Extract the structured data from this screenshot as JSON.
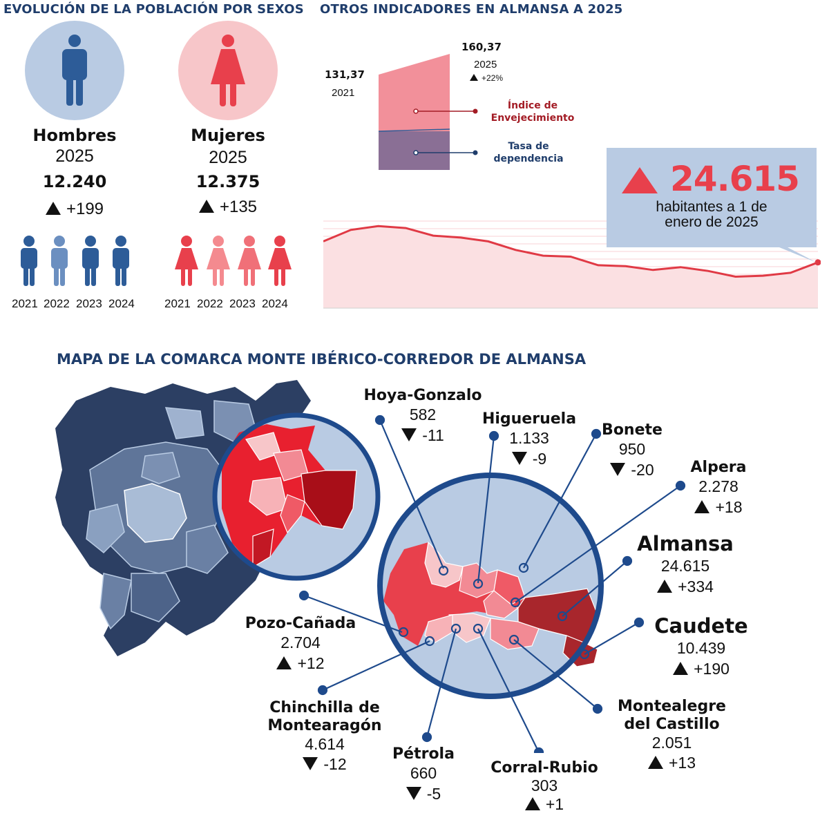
{
  "sections": {
    "sexes_title": "EVOLUCIÓN DE LA POBLACIÓN POR SEXOS",
    "indicators_title": "OTROS INDICADORES EN ALMANSA A 2025",
    "map_title": "MAPA DE LA COMARCA MONTE IBÉRICO-CORREDOR DE ALMANSA"
  },
  "men": {
    "label": "Hombres",
    "year": "2025",
    "value": "12.240",
    "change": "+199",
    "years": [
      "2021",
      "2022",
      "2023",
      "2024"
    ]
  },
  "women": {
    "label": "Mujeres",
    "year": "2025",
    "value": "12.375",
    "change": "+135",
    "years": [
      "2021",
      "2022",
      "2023",
      "2024"
    ]
  },
  "ageing": {
    "v2021": "131,37",
    "y2021": "2021",
    "v2025": "160,37",
    "y2025": "2025",
    "change": "+22%",
    "label_ageing": "Índice de Envejecimiento",
    "label_dependency": "Tasa de dependencia"
  },
  "population": {
    "value": "24.615",
    "caption": "habitantes a 1 de enero de 2025",
    "trend": [
      70,
      82,
      86,
      84,
      76,
      74,
      70,
      61,
      55,
      54,
      45,
      44,
      40,
      43,
      39,
      33,
      34,
      37,
      48
    ]
  },
  "municipalities": [
    {
      "id": "hoya",
      "name": "Hoya-Gonzalo",
      "value": "582",
      "change": "-11",
      "dir": "down"
    },
    {
      "id": "higueruela",
      "name": "Higueruela",
      "value": "1.133",
      "change": "-9",
      "dir": "down"
    },
    {
      "id": "bonete",
      "name": "Bonete",
      "value": "950",
      "change": "-20",
      "dir": "down"
    },
    {
      "id": "alpera",
      "name": "Alpera",
      "value": "2.278",
      "change": "+18",
      "dir": "up"
    },
    {
      "id": "almansa",
      "name": "Almansa",
      "value": "24.615",
      "change": "+334",
      "dir": "up"
    },
    {
      "id": "caudete",
      "name": "Caudete",
      "value": "10.439",
      "change": "+190",
      "dir": "up"
    },
    {
      "id": "pozo",
      "name": "Pozo-Cañada",
      "value": "2.704",
      "change": "+12",
      "dir": "up"
    },
    {
      "id": "chinchilla",
      "name": "Chinchilla de Montearagón",
      "value": "4.614",
      "change": "-12",
      "dir": "down"
    },
    {
      "id": "petrola",
      "name": "Pétrola",
      "value": "660",
      "change": "-5",
      "dir": "down"
    },
    {
      "id": "corral",
      "name": "Corral-Rubio",
      "value": "303",
      "change": "+1",
      "dir": "up"
    },
    {
      "id": "montealegre",
      "name": "Montealegre del Castillo",
      "value": "2.051",
      "change": "+13",
      "dir": "up"
    }
  ],
  "colors": {
    "navy": "#1f3d6b",
    "male": "#2d5c98",
    "male_light": "#6b8fc0",
    "female": "#e8404c",
    "female_light": "#f48a8f",
    "circle_blue": "#b9cbe3",
    "circle_pink": "#f7c6c9"
  }
}
